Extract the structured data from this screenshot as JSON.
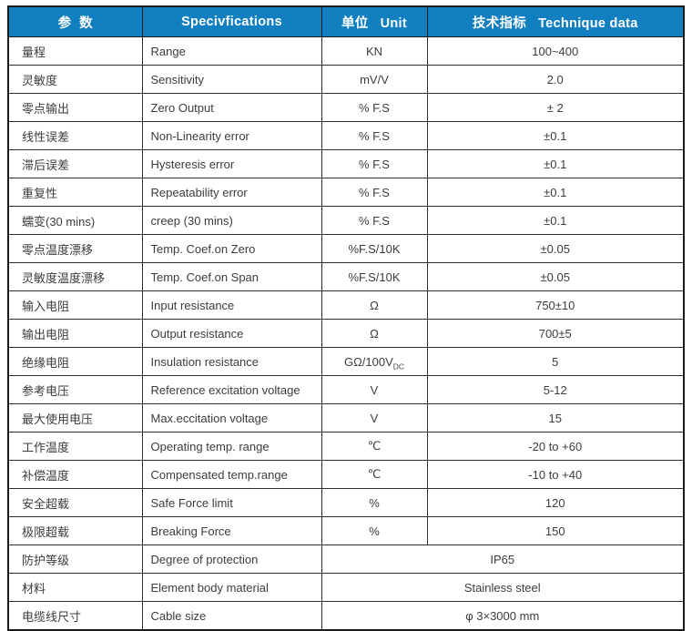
{
  "table": {
    "header": {
      "parameter": "参  数",
      "specifications": "Specivfications",
      "unit": "单位   Unit",
      "technique_data": "技术指标   Technique data"
    },
    "rows": [
      {
        "param_cn": "量程",
        "spec_en": "Range",
        "unit": "KN",
        "value": "100~400"
      },
      {
        "param_cn": "灵敏度",
        "spec_en": "Sensitivity",
        "unit": "mV/V",
        "value": "2.0"
      },
      {
        "param_cn": "零点输出",
        "spec_en": "Zero Output",
        "unit": "% F.S",
        "value": "± 2"
      },
      {
        "param_cn": "线性误差",
        "spec_en": "Non-Linearity error",
        "unit": "% F.S",
        "value": "±0.1"
      },
      {
        "param_cn": "滞后误差",
        "spec_en": "Hysteresis error",
        "unit": "% F.S",
        "value": "±0.1"
      },
      {
        "param_cn": "重复性",
        "spec_en": "Repeatability error",
        "unit": "% F.S",
        "value": "±0.1"
      },
      {
        "param_cn": "蠕变(30 mins)",
        "spec_en": "creep (30 mins)",
        "unit": "% F.S",
        "value": "±0.1"
      },
      {
        "param_cn": "零点温度漂移",
        "spec_en": "Temp. Coef.on Zero",
        "unit": "%F.S/10K",
        "value": "±0.05"
      },
      {
        "param_cn": "灵敏度温度漂移",
        "spec_en": "Temp. Coef.on Span",
        "unit": "%F.S/10K",
        "value": "±0.05"
      },
      {
        "param_cn": "输入电阻",
        "spec_en": "Input resistance",
        "unit": "Ω",
        "value": "750±10"
      },
      {
        "param_cn": "输出电阻",
        "spec_en": "Output resistance",
        "unit": "Ω",
        "value": "700±5"
      },
      {
        "param_cn": "绝缘电阻",
        "spec_en": "Insulation resistance",
        "unit": "GΩ/100V",
        "unit_sub": "DC",
        "value": "5"
      },
      {
        "param_cn": "参考电压",
        "spec_en": "Reference excitation voltage",
        "unit": "V",
        "value": "5-12"
      },
      {
        "param_cn": "最大使用电压",
        "spec_en": "Max.eccitation voltage",
        "unit": "V",
        "value": "15"
      },
      {
        "param_cn": "工作温度",
        "spec_en": "Operating temp. range",
        "unit": "℃",
        "value": "-20 to +60"
      },
      {
        "param_cn": "补偿温度",
        "spec_en": "Compensated temp.range",
        "unit": "℃",
        "value": "-10 to +40"
      },
      {
        "param_cn": "安全超载",
        "spec_en": "Safe Force limit",
        "unit": "%",
        "value": "120"
      },
      {
        "param_cn": "极限超载",
        "spec_en": "Breaking Force",
        "unit": "%",
        "value": "150"
      },
      {
        "param_cn": "防护等级",
        "spec_en": "Degree of protection",
        "merged": true,
        "value": "IP65"
      },
      {
        "param_cn": "材料",
        "spec_en": "Element body material",
        "merged": true,
        "value": "Stainless steel"
      },
      {
        "param_cn": "电缆线尺寸",
        "spec_en": "Cable size",
        "merged": true,
        "value": "φ 3×3000 mm"
      }
    ]
  },
  "colors": {
    "header_bg": "#127fc0",
    "header_text": "#ffffff",
    "grid_line": "#2e2e2e",
    "outer_border": "#1b1b1b",
    "body_text": "#3c3c3c"
  }
}
